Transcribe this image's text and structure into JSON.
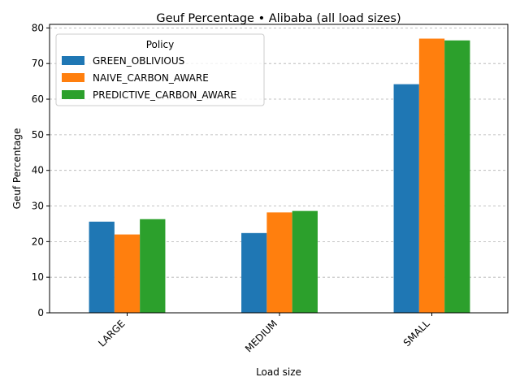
{
  "chart_data": {
    "type": "bar",
    "title": "Geuf Percentage • Alibaba (all load sizes)",
    "xlabel": "Load size",
    "ylabel": "Geuf Percentage",
    "categories": [
      "LARGE",
      "MEDIUM",
      "SMALL"
    ],
    "series": [
      {
        "name": "GREEN_OBLIVIOUS",
        "values": [
          25.6,
          22.4,
          64.2
        ],
        "color": "#1f77b4"
      },
      {
        "name": "NAIVE_CARBON_AWARE",
        "values": [
          22.0,
          28.2,
          77.0
        ],
        "color": "#ff7f0e"
      },
      {
        "name": "PREDICTIVE_CARBON_AWARE",
        "values": [
          26.3,
          28.6,
          76.5
        ],
        "color": "#2ca02c"
      }
    ],
    "ylim": [
      0,
      81
    ],
    "yticks": [
      0,
      10,
      20,
      30,
      40,
      50,
      60,
      70,
      80
    ],
    "grid": "y-dashed",
    "legend": {
      "title": "Policy",
      "placement": "top-left"
    }
  }
}
